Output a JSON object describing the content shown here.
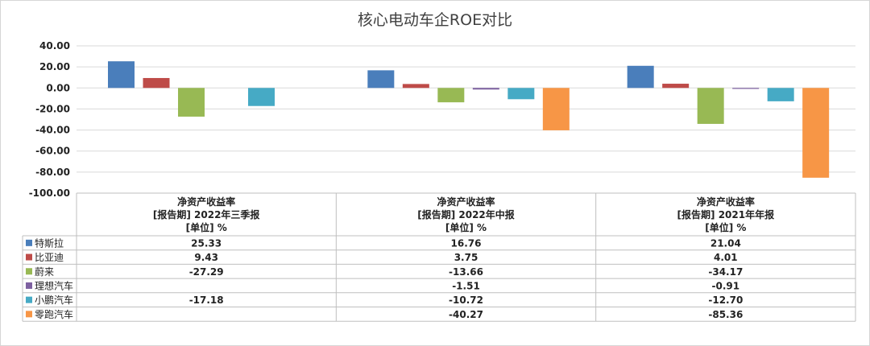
{
  "chart_data": {
    "type": "bar",
    "title": "核心电动车企ROE对比",
    "ylim": [
      -100,
      40
    ],
    "y_ticks": [
      "40.00",
      "20.00",
      "0.00",
      "-20.00",
      "-40.00",
      "-60.00",
      "-80.00",
      "-100.00"
    ],
    "grid": true,
    "legend": "data-table",
    "categories": [
      {
        "line1": "净资产收益率",
        "line2": "[报告期] 2022年三季报",
        "line3": "[单位] %"
      },
      {
        "line1": "净资产收益率",
        "line2": "[报告期] 2022年中报",
        "line3": "[单位] %"
      },
      {
        "line1": "净资产收益率",
        "line2": "[报告期] 2021年年报",
        "line3": "[单位] %"
      }
    ],
    "series": [
      {
        "name": "特斯拉",
        "color": "#4a7ebb",
        "values": [
          25.33,
          16.76,
          21.04
        ],
        "labels": [
          "25.33",
          "16.76",
          "21.04"
        ]
      },
      {
        "name": "比亚迪",
        "color": "#be4b48",
        "values": [
          9.43,
          3.75,
          4.01
        ],
        "labels": [
          "9.43",
          "3.75",
          "4.01"
        ]
      },
      {
        "name": "蔚来",
        "color": "#98b954",
        "values": [
          -27.29,
          -13.66,
          -34.17
        ],
        "labels": [
          "-27.29",
          "-13.66",
          "-34.17"
        ]
      },
      {
        "name": "理想汽车",
        "color": "#7d60a0",
        "values": [
          null,
          -1.51,
          -0.91
        ],
        "labels": [
          "",
          "-1.51",
          "-0.91"
        ]
      },
      {
        "name": "小鹏汽车",
        "color": "#46aac5",
        "values": [
          -17.18,
          -10.72,
          -12.7
        ],
        "labels": [
          "-17.18",
          "-10.72",
          "-12.70"
        ]
      },
      {
        "name": "零跑汽车",
        "color": "#f79646",
        "values": [
          null,
          -40.27,
          -85.36
        ],
        "labels": [
          "",
          "-40.27",
          "-85.36"
        ]
      }
    ]
  }
}
